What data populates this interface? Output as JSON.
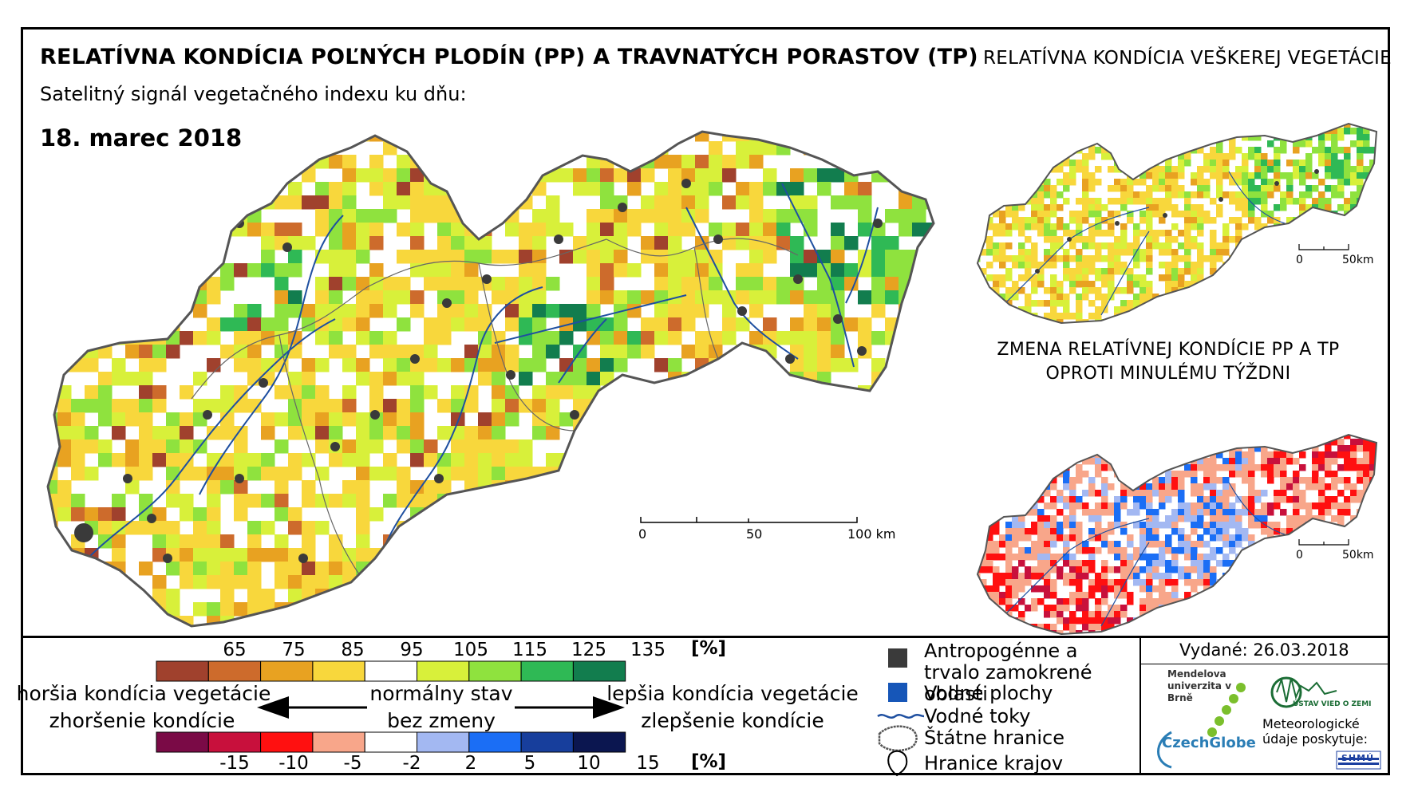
{
  "title": "RELATÍVNA KONDÍCIA POĽNÝCH PLODÍN (PP) A TRAVNATÝCH PORASTOV (TP)",
  "subtitle": "Satelitný signál vegetačného indexu ku dňu:",
  "date": "18. marec 2018",
  "side_title": "RELATÍVNA KONDÍCIA VEŠKEREJ VEGETÁCIE",
  "change_title": "ZMENA RELATÍVNEJ KONDÍCIE PP A TP OPROTI MINULÉMU TÝŽDNI",
  "main_scale": {
    "labels": [
      "0",
      "50",
      "100 km"
    ]
  },
  "small_scale": {
    "labels": [
      "0",
      "50km"
    ]
  },
  "small_scale_2": {
    "labels": [
      "0",
      "50km"
    ]
  },
  "condition_legend": {
    "ticks": [
      "65",
      "75",
      "85",
      "95",
      "105",
      "115",
      "125",
      "135"
    ],
    "unit": "[%]",
    "colors": [
      "#a0412d",
      "#cd6b2c",
      "#e8a221",
      "#f8d73c",
      "#ffffff",
      "#d8f03a",
      "#8fe23e",
      "#2fb955",
      "#127d4e"
    ]
  },
  "change_legend": {
    "ticks": [
      "-15",
      "-10",
      "-5",
      "-2",
      "2",
      "5",
      "10",
      "15"
    ],
    "unit": "[%]",
    "colors": [
      "#7a0a46",
      "#c8103c",
      "#ff1010",
      "#f8a68a",
      "#ffffff",
      "#a3b8f2",
      "#1b6ef5",
      "#173e9c",
      "#0b1650"
    ]
  },
  "descriptions": {
    "worse_condition": "horšia kondícia vegetácie",
    "worsening": "zhoršenie kondície",
    "normal": "normálny stav",
    "no_change": "bez zmeny",
    "better_condition": "lepšia kondícia vegetácie",
    "improvement": "zlepšenie kondície"
  },
  "map_key": {
    "anthropogenic": "Antropogénne a trvalo zamokrené oblasti",
    "water_bodies": "Vodné plochy",
    "watercourses": "Vodné toky",
    "state_border": "Štátne hranice",
    "region_border": "Hranice krajov"
  },
  "colors": {
    "anthropogenic": "#3a3a3a",
    "water": "#1656b8",
    "river": "#1e4fa0",
    "border": "#555555"
  },
  "issued": "Vydané: 26.03.2018",
  "logos": {
    "mendel": "Mendelova univerzita v Brně",
    "czechglobe": "CzechGlobe",
    "ustav": "ÚSTAV VIED O ZEMI",
    "meteo": "Meteorologické údaje poskytuje:",
    "shmu": "SHMÚ"
  }
}
